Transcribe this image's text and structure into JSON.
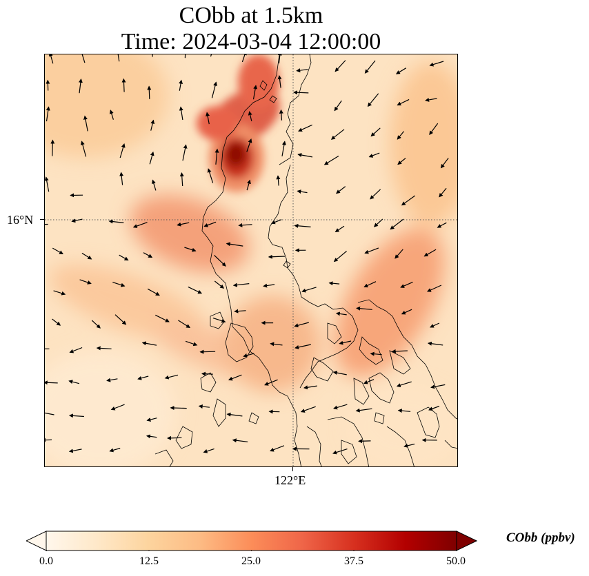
{
  "header": {
    "title_line1": "CObb at 1.5km",
    "title_line2": "Time: 2024-03-04 12:00:00"
  },
  "map": {
    "lat_gridline_label": "16°N",
    "lon_gridline_label": "122°E",
    "coastline_color": "#000000",
    "wind_arrow_color": "#000000",
    "gridline_style": "dotted"
  },
  "colorbar": {
    "title": "CObb (ppbv)",
    "ticks": [
      "0.0",
      "12.5",
      "25.0",
      "37.5",
      "50.0"
    ],
    "colormap": "OrRd",
    "extend": "both",
    "colors": [
      "#fff7ec",
      "#fee8c8",
      "#fdd49e",
      "#fdbb84",
      "#fc8d59",
      "#ef6548",
      "#d7301f",
      "#b30000",
      "#7f0000"
    ]
  }
}
